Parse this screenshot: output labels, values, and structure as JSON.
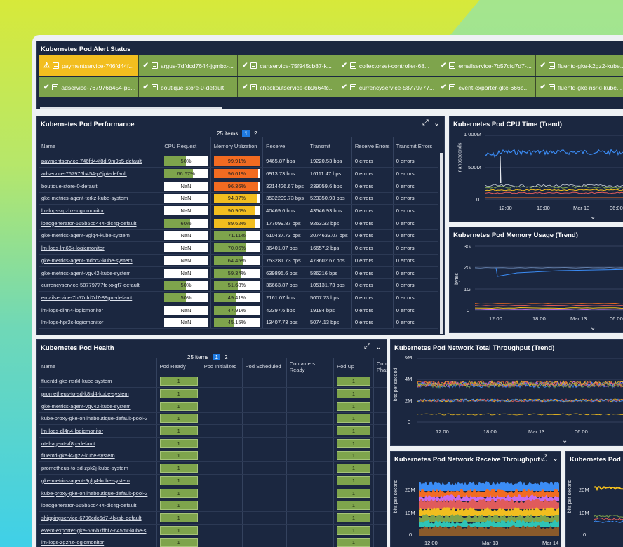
{
  "alert_panel": {
    "title": "Kubernetes Pod Alert Status",
    "row1": [
      {
        "name": "paymentservice-746fd44f...",
        "status": "warning"
      },
      {
        "name": "argus-7dfdcd7644-jgmbx-...",
        "status": "ok"
      },
      {
        "name": "cartservice-75f945cb87-k...",
        "status": "ok"
      },
      {
        "name": "collectorset-controller-68...",
        "status": "ok"
      },
      {
        "name": "emailservice-7b57cfd7d7-...",
        "status": "ok"
      },
      {
        "name": "fluentd-gke-k2gz2-kube...",
        "status": "ok"
      }
    ],
    "row2": [
      {
        "name": "adservice-767976b454-p5...",
        "status": "ok"
      },
      {
        "name": "boutique-store-0-default",
        "status": "ok"
      },
      {
        "name": "checkoutservice-cb9664fc...",
        "status": "ok"
      },
      {
        "name": "currencyservice-58779777...",
        "status": "ok"
      },
      {
        "name": "event-exporter-gke-666b...",
        "status": "ok"
      },
      {
        "name": "fluentd-gke-nsrkl-kube...",
        "status": "ok"
      }
    ]
  },
  "perf": {
    "title": "Kubernetes Pod Performance",
    "items": "25 items",
    "page1": "1",
    "page2": "2",
    "cols": [
      "Name",
      "CPU Request",
      "Memory Utilization",
      "Receive",
      "Transmit",
      "Receive Errors",
      "Transmit Errors"
    ],
    "rows": [
      {
        "name": "paymentservice-746fd44f8d-9m9b5-default",
        "cpu": "50%",
        "cpuv": 50,
        "mem": "99.91%",
        "memv": 99.91,
        "memc": "#f26b21",
        "rx": "9465.87 bps",
        "tx": "19220.53 bps",
        "re": "0 errors",
        "te": "0 errors"
      },
      {
        "name": "adservice-767976b454-p5jpk-default",
        "cpu": "66.67%",
        "cpuv": 66.67,
        "mem": "96.61%",
        "memv": 96.61,
        "memc": "#f26b21",
        "rx": "6913.73 bps",
        "tx": "16111.47 bps",
        "re": "0 errors",
        "te": "0 errors"
      },
      {
        "name": "boutique-store-0-default",
        "cpu": "NaN",
        "cpuv": 0,
        "mem": "96.36%",
        "memv": 96.36,
        "memc": "#f26b21",
        "rx": "3214426.67 bps",
        "tx": "239059.6 bps",
        "re": "0 errors",
        "te": "0 errors"
      },
      {
        "name": "gke-metrics-agent-tcrkz-kube-system",
        "cpu": "NaN",
        "cpuv": 0,
        "mem": "94.37%",
        "memv": 94.37,
        "memc": "#f2be1f",
        "rx": "3532299.73 bps",
        "tx": "523350.93 bps",
        "re": "0 errors",
        "te": "0 errors"
      },
      {
        "name": "lm-logs-zgzhz-logicmonitor",
        "cpu": "NaN",
        "cpuv": 0,
        "mem": "90.90%",
        "memv": 90.9,
        "memc": "#f2be1f",
        "rx": "40469.6 bps",
        "tx": "43546.93 bps",
        "re": "0 errors",
        "te": "0 errors"
      },
      {
        "name": "loadgenerator-665b5cd444-dlc4g-default",
        "cpu": "60%",
        "cpuv": 60,
        "mem": "89.62%",
        "memv": 89.62,
        "memc": "#f2be1f",
        "rx": "177099.87 bps",
        "tx": "9263.33 bps",
        "re": "0 errors",
        "te": "0 errors"
      },
      {
        "name": "gke-metrics-agent-9glg4-kube-system",
        "cpu": "NaN",
        "cpuv": 0,
        "mem": "71.11%",
        "memv": 71.11,
        "memc": "#7ea44c",
        "rx": "610437.73 bps",
        "tx": "2074633.07 bps",
        "re": "0 errors",
        "te": "0 errors"
      },
      {
        "name": "lm-logs-lm66k-logicmonitor",
        "cpu": "NaN",
        "cpuv": 0,
        "mem": "70.06%",
        "memv": 70.06,
        "memc": "#7ea44c",
        "rx": "36401.07 bps",
        "tx": "16657.2 bps",
        "re": "0 errors",
        "te": "0 errors"
      },
      {
        "name": "gke-metrics-agent-mdcc2-kube-system",
        "cpu": "NaN",
        "cpuv": 0,
        "mem": "64.45%",
        "memv": 64.45,
        "memc": "#7ea44c",
        "rx": "753281.73 bps",
        "tx": "473602.67 bps",
        "re": "0 errors",
        "te": "0 errors"
      },
      {
        "name": "gke-metrics-agent-vgv42-kube-system",
        "cpu": "NaN",
        "cpuv": 0,
        "mem": "59.34%",
        "memv": 59.34,
        "memc": "#7ea44c",
        "rx": "639895.6 bps",
        "tx": "586216 bps",
        "re": "0 errors",
        "te": "0 errors"
      },
      {
        "name": "currencyservice-58779777fc-xxgf7-default",
        "cpu": "50%",
        "cpuv": 50,
        "mem": "51.68%",
        "memv": 51.68,
        "memc": "#7ea44c",
        "rx": "36663.87 bps",
        "tx": "105131.73 bps",
        "re": "0 errors",
        "te": "0 errors"
      },
      {
        "name": "emailservice-7b57cfd7d7-89gnl-default",
        "cpu": "50%",
        "cpuv": 50,
        "mem": "49.41%",
        "memv": 49.41,
        "memc": "#7ea44c",
        "rx": "2161.07 bps",
        "tx": "5007.73 bps",
        "re": "0 errors",
        "te": "0 errors"
      },
      {
        "name": "lm-logs-dl4n4-logicmonitor",
        "cpu": "NaN",
        "cpuv": 0,
        "mem": "47.91%",
        "memv": 47.91,
        "memc": "#7ea44c",
        "rx": "42397.6 bps",
        "tx": "19184 bps",
        "re": "0 errors",
        "te": "0 errors"
      },
      {
        "name": "lm-logs-hpr2c-logicmonitor",
        "cpu": "NaN",
        "cpuv": 0,
        "mem": "45.15%",
        "memv": 45.15,
        "memc": "#7ea44c",
        "rx": "13407.73 bps",
        "tx": "5074.13 bps",
        "re": "0 errors",
        "te": "0 errors"
      }
    ]
  },
  "health": {
    "title": "Kubernetes Pod Health",
    "items": "25 items",
    "page1": "1",
    "page2": "2",
    "cols": [
      "Name",
      "Pod Ready",
      "Pod Initialized",
      "Pod Scheduled",
      "Containers Ready",
      "Pod Up",
      "Condition Phase"
    ],
    "rows": [
      {
        "name": "fluentd-gke-nsrkl-kube-system",
        "ready": "1",
        "up": "1"
      },
      {
        "name": "prometheus-to-sd-k8td4-kube-system",
        "ready": "1",
        "up": "1"
      },
      {
        "name": "gke-metrics-agent-vgv42-kube-system",
        "ready": "1",
        "up": "1"
      },
      {
        "name": "kube-proxy-gke-onlineboutique-default-pool-2",
        "ready": "1",
        "up": "1"
      },
      {
        "name": "lm-logs-dl4n4-logicmonitor",
        "ready": "1",
        "up": "1"
      },
      {
        "name": "otel-agent-vf8jx-default",
        "ready": "1",
        "up": "1"
      },
      {
        "name": "fluentd-gke-k2gz2-kube-system",
        "ready": "1",
        "up": "1"
      },
      {
        "name": "prometheus-to-sd-zpk2j-kube-system",
        "ready": "1",
        "up": "1"
      },
      {
        "name": "gke-metrics-agent-9glg4-kube-system",
        "ready": "1",
        "up": "1"
      },
      {
        "name": "kube-proxy-gke-onlineboutique-default-pool-2",
        "ready": "1",
        "up": "1"
      },
      {
        "name": "loadgenerator-665b5cd444-dlc4g-default",
        "ready": "1",
        "up": "1"
      },
      {
        "name": "shippingservice-6796cdc6d7-4bksb-default",
        "ready": "1",
        "up": "1"
      },
      {
        "name": "event-exporter-gke-666b7ffbf7-645mr-kube-s",
        "ready": "1",
        "up": "1"
      },
      {
        "name": "lm-logs-zgzhz-logicmonitor",
        "ready": "1",
        "up": "1"
      }
    ]
  },
  "cpu_chart": {
    "title": "Kubernetes Pod CPU Time (Trend)",
    "ylabel": "nanoseconds",
    "yticks": [
      "1 000M",
      "500M",
      "0"
    ],
    "xticks": [
      "12:00",
      "18:00",
      "Mar 13",
      "06:00"
    ]
  },
  "mem_chart": {
    "title": "Kubernetes Pod Memory Usage (Trend)",
    "ylabel": "bytes",
    "yticks": [
      "3G",
      "2G",
      "1G",
      "0"
    ],
    "xticks": [
      "12:00",
      "18:00",
      "Mar 13",
      "06:00"
    ]
  },
  "net_chart": {
    "title": "Kubernetes Pod Network Total Throughput (Trend)",
    "ylabel": "bits per second",
    "yticks": [
      "6M",
      "4M",
      "2M",
      "0"
    ],
    "xticks": [
      "12:00",
      "18:00",
      "Mar 13",
      "06:00"
    ]
  },
  "rx_chart": {
    "title": "Kubernetes Pod Network Receive Throughput ...",
    "ylabel": "bits per second",
    "yticks": [
      "20M",
      "10M",
      "0"
    ],
    "xticks": [
      "12:00",
      "Mar 13",
      "Mar 14"
    ]
  },
  "tx_chart": {
    "title": "Kubernetes Pod Net",
    "ylabel": "bits per second",
    "yticks": [
      "20M",
      "10M",
      "0"
    ]
  }
}
